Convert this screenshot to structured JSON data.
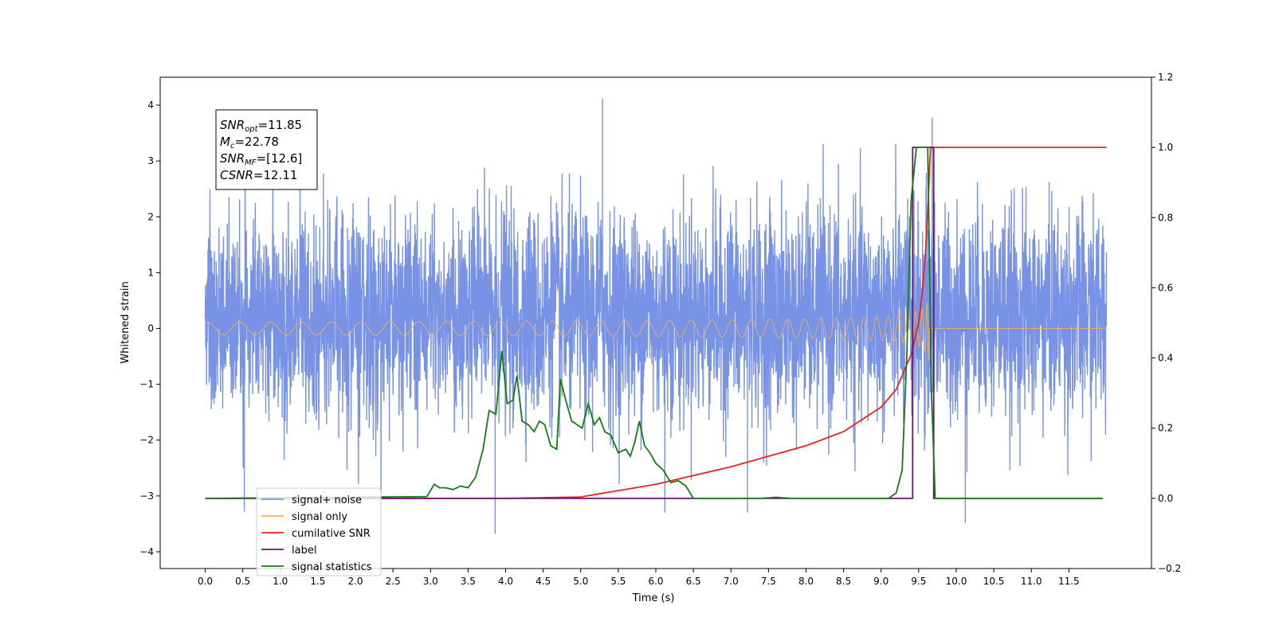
{
  "chart_data": {
    "type": "line",
    "xlabel": "Time (s)",
    "ylabel": "Whitened strain",
    "xlim": [
      -0.6,
      12.6
    ],
    "ylim": [
      -4.3,
      4.5
    ],
    "y2lim": [
      -0.2,
      1.2
    ],
    "x_ticks": [
      0.0,
      0.5,
      1.0,
      1.5,
      2.0,
      2.5,
      3.0,
      3.5,
      4.0,
      4.5,
      5.0,
      5.5,
      6.0,
      6.5,
      7.0,
      7.5,
      8.0,
      8.5,
      9.0,
      9.5,
      10.0,
      10.5,
      11.0,
      11.5
    ],
    "x_tick_labels": [
      "0.0",
      "0.5",
      "1.0",
      "1.5",
      "2.0",
      "2.5",
      "3.0",
      "3.5",
      "4.0",
      "4.5",
      "5.0",
      "5.5",
      "6.0",
      "6.5",
      "7.0",
      "7.5",
      "8.0",
      "8.5",
      "9.0",
      "9.5",
      "10.0",
      "10.5",
      "11.0",
      "11.5"
    ],
    "y_ticks": [
      -4,
      -3,
      -2,
      -1,
      0,
      1,
      2,
      3,
      4
    ],
    "y_tick_labels": [
      "−4",
      "−3",
      "−2",
      "−1",
      "0",
      "1",
      "2",
      "3",
      "4"
    ],
    "y2_ticks": [
      -0.2,
      0.0,
      0.2,
      0.4,
      0.6,
      0.8,
      1.0,
      1.2
    ],
    "y2_tick_labels": [
      "−0.2",
      "0.0",
      "0.2",
      "0.4",
      "0.6",
      "0.8",
      "1.0",
      "1.2"
    ],
    "grid": false,
    "legend_position": "lower-left",
    "annotation": [
      {
        "base": "SNR",
        "sub": "opt",
        "value": "=11.85"
      },
      {
        "base": "M",
        "sub": "c",
        "value": "=22.78"
      },
      {
        "base": "SNR",
        "sub": "MF",
        "value": "=[12.6]"
      },
      {
        "base": "CSNR",
        "sub": "",
        "value": "=12.11"
      }
    ],
    "series": [
      {
        "name": "signal+ noise",
        "axis": "left",
        "color": "#7893e6",
        "style": "noise",
        "noise_std": 1.0,
        "t_range": [
          0.0,
          12.0
        ],
        "spikes": [
          [
            5.29,
            4.12
          ],
          [
            9.68,
            3.78
          ],
          [
            3.86,
            -3.68
          ],
          [
            10.12,
            -3.48
          ],
          [
            0.52,
            -3.28
          ],
          [
            7.22,
            -3.3
          ],
          [
            6.12,
            -3.3
          ]
        ]
      },
      {
        "name": "signal only",
        "axis": "left",
        "color": "#f5b25a",
        "style": "chirp",
        "t_range": [
          0.0,
          12.0
        ],
        "merger_time": 9.64,
        "peak_amplitude": 0.6
      },
      {
        "name": "cumilative SNR",
        "axis": "right",
        "color": "#e8221c",
        "x": [
          0.0,
          4.0,
          5.0,
          6.0,
          7.0,
          8.0,
          8.5,
          9.0,
          9.2,
          9.4,
          9.5,
          9.55,
          9.6,
          9.63,
          9.65,
          9.66,
          12.0
        ],
        "y": [
          0.0,
          0.0,
          0.004,
          0.04,
          0.09,
          0.15,
          0.19,
          0.26,
          0.31,
          0.41,
          0.5,
          0.59,
          0.73,
          0.86,
          0.97,
          1.0,
          1.0
        ]
      },
      {
        "name": "label",
        "axis": "right",
        "color": "#6e1270",
        "x": [
          0.0,
          9.42,
          9.42,
          9.7,
          9.7,
          11.95
        ],
        "y": [
          0.0,
          0.0,
          1.0,
          1.0,
          0.0,
          0.0
        ]
      },
      {
        "name": "signal statistics",
        "axis": "right",
        "color": "#167a16",
        "x": [
          0.0,
          2.95,
          3.05,
          3.12,
          3.2,
          3.3,
          3.4,
          3.5,
          3.6,
          3.7,
          3.78,
          3.87,
          3.95,
          4.02,
          4.1,
          4.15,
          4.22,
          4.3,
          4.38,
          4.45,
          4.52,
          4.6,
          4.68,
          4.73,
          4.8,
          4.88,
          4.95,
          5.02,
          5.1,
          5.18,
          5.25,
          5.32,
          5.4,
          5.5,
          5.6,
          5.66,
          5.72,
          5.78,
          5.85,
          5.92,
          6.0,
          6.1,
          6.2,
          6.3,
          6.4,
          6.5,
          7.4,
          7.6,
          7.8,
          9.1,
          9.2,
          9.28,
          9.34,
          9.4,
          9.47,
          9.55,
          9.62,
          9.67,
          9.72,
          11.95
        ],
        "y": [
          0.0,
          0.005,
          0.04,
          0.03,
          0.03,
          0.025,
          0.035,
          0.03,
          0.06,
          0.14,
          0.25,
          0.24,
          0.42,
          0.27,
          0.28,
          0.35,
          0.22,
          0.21,
          0.19,
          0.22,
          0.21,
          0.15,
          0.14,
          0.34,
          0.28,
          0.22,
          0.21,
          0.2,
          0.27,
          0.21,
          0.23,
          0.19,
          0.18,
          0.13,
          0.14,
          0.12,
          0.16,
          0.22,
          0.15,
          0.13,
          0.1,
          0.08,
          0.045,
          0.05,
          0.035,
          0.0,
          0.0,
          0.003,
          0.0,
          0.0,
          0.015,
          0.08,
          0.4,
          0.85,
          1.0,
          1.0,
          1.0,
          0.3,
          0.0,
          0.0
        ]
      }
    ],
    "legend_items": [
      {
        "name": "signal+ noise",
        "color": "#7893e6"
      },
      {
        "name": "signal only",
        "color": "#f5b25a"
      },
      {
        "name": "cumilative SNR",
        "color": "#e8221c"
      },
      {
        "name": "label",
        "color": "#6e1270"
      },
      {
        "name": "signal statistics",
        "color": "#167a16"
      }
    ]
  }
}
